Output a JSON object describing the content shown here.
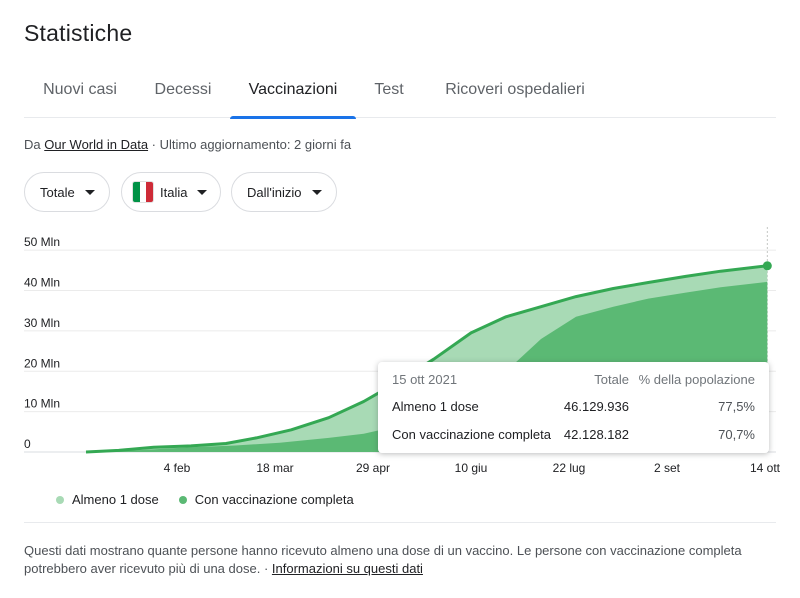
{
  "page": {
    "title": "Statistiche"
  },
  "tabs": [
    {
      "label": "Nuovi casi",
      "active": false
    },
    {
      "label": "Decessi",
      "active": false
    },
    {
      "label": "Vaccinazioni",
      "active": true
    },
    {
      "label": "Test",
      "active": false
    },
    {
      "label": "Ricoveri ospedalieri",
      "active": false
    }
  ],
  "source": {
    "prefix": "Da",
    "link": "Our World in Data",
    "separator": "·",
    "updated": "Ultimo aggiornamento: 2 giorni fa"
  },
  "filters": {
    "metric": "Totale",
    "country": "Italia",
    "country_flag_colors": [
      "#009246",
      "#ffffff",
      "#ce2b37"
    ],
    "period": "Dall'inizio"
  },
  "colors": {
    "accent": "#1a73e8",
    "first_dose": "#a8dab5",
    "full": "#5bb974",
    "line": "#34a853"
  },
  "chart_data": {
    "type": "area",
    "y_ticks": [
      "50 Mln",
      "40 Mln",
      "30 Mln",
      "20 Mln",
      "10 Mln",
      "0"
    ],
    "y_tick_values": [
      50,
      40,
      30,
      20,
      10,
      0
    ],
    "ylim": [
      0,
      55
    ],
    "x_ticks": [
      "4 feb",
      "18 mar",
      "29 apr",
      "10 giu",
      "22 lug",
      "2 set",
      "14 ott"
    ],
    "x_tick_dates": [
      "2021-02-04",
      "2021-03-18",
      "2021-04-29",
      "2021-06-10",
      "2021-07-22",
      "2021-09-02",
      "2021-10-14"
    ],
    "grid": true,
    "series": [
      {
        "name": "Almeno 1 dose",
        "points": [
          [
            "2020-12-27",
            0
          ],
          [
            "2021-01-10",
            0.4
          ],
          [
            "2021-01-25",
            1.2
          ],
          [
            "2021-02-10",
            1.5
          ],
          [
            "2021-02-25",
            2.1
          ],
          [
            "2021-03-10",
            3.5
          ],
          [
            "2021-03-25",
            5.5
          ],
          [
            "2021-04-10",
            8.5
          ],
          [
            "2021-04-25",
            12.5
          ],
          [
            "2021-05-10",
            17.5
          ],
          [
            "2021-05-25",
            23.0
          ],
          [
            "2021-06-10",
            29.5
          ],
          [
            "2021-06-25",
            33.5
          ],
          [
            "2021-07-10",
            36.0
          ],
          [
            "2021-07-25",
            38.5
          ],
          [
            "2021-08-10",
            40.5
          ],
          [
            "2021-08-25",
            42.0
          ],
          [
            "2021-09-10",
            43.5
          ],
          [
            "2021-09-25",
            44.8
          ],
          [
            "2021-10-15",
            46.13
          ]
        ]
      },
      {
        "name": "Con vaccinazione completa",
        "points": [
          [
            "2020-12-27",
            0
          ],
          [
            "2021-01-20",
            0.5
          ],
          [
            "2021-02-10",
            1.2
          ],
          [
            "2021-03-01",
            1.6
          ],
          [
            "2021-03-20",
            2.3
          ],
          [
            "2021-04-10",
            3.5
          ],
          [
            "2021-04-25",
            4.5
          ],
          [
            "2021-05-10",
            6.5
          ],
          [
            "2021-05-25",
            9.0
          ],
          [
            "2021-06-10",
            14.0
          ],
          [
            "2021-06-25",
            20.0
          ],
          [
            "2021-07-10",
            28.0
          ],
          [
            "2021-07-25",
            33.5
          ],
          [
            "2021-08-10",
            36.0
          ],
          [
            "2021-08-25",
            38.0
          ],
          [
            "2021-09-10",
            39.5
          ],
          [
            "2021-09-25",
            40.8
          ],
          [
            "2021-10-15",
            42.13
          ]
        ]
      }
    ],
    "legend": [
      "Almeno 1 dose",
      "Con vaccinazione completa"
    ]
  },
  "tooltip": {
    "date": "15 ott 2021",
    "col_total": "Totale",
    "col_pct": "% della popolazione",
    "rows": [
      {
        "label": "Almeno 1 dose",
        "total": "46.129.936",
        "pct": "77,5%"
      },
      {
        "label": "Con vaccinazione completa",
        "total": "42.128.182",
        "pct": "70,7%"
      }
    ]
  },
  "footer": {
    "text": "Questi dati mostrano quante persone hanno ricevuto almeno una dose di un vaccino. Le persone con vaccinazione completa potrebbero aver ricevuto più di una dose.",
    "separator": "·",
    "link": "Informazioni su questi dati"
  }
}
